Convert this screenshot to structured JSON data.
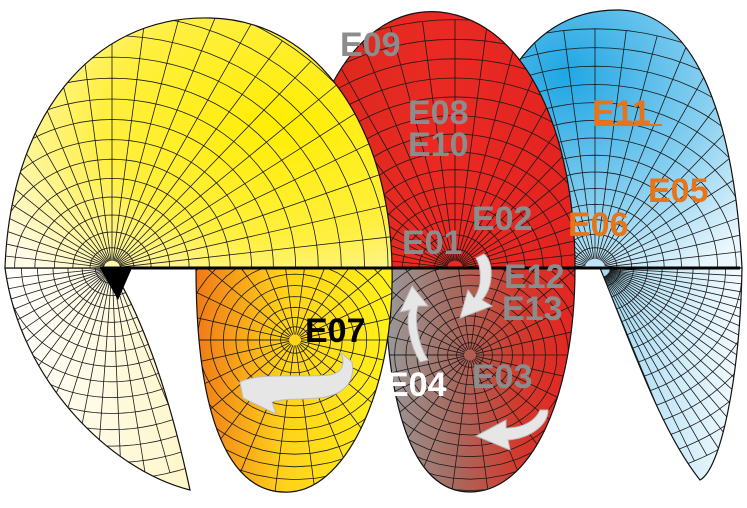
{
  "diagram": {
    "labels": {
      "e01": "E01",
      "e02": "E02",
      "e03": "E03",
      "e04": "E04",
      "e05": "E05",
      "e06": "E06",
      "e07": "E07",
      "e08": "E08",
      "e09": "E09",
      "e10": "E10",
      "e11": "E11",
      "e12": "E12",
      "e13": "E13"
    },
    "colors": {
      "yellow_turn": "#ffef1a",
      "red_turn": "#e8231f",
      "blue_turn": "#33aee6",
      "orange_turn": "#f08a1c",
      "grid_line": "#1a1a1a",
      "label_grey": "#8c8c8c",
      "label_orange": "#e8741a",
      "label_black": "#000000",
      "label_white": "#ffffff",
      "arrow_fill": "#e6e6e6"
    },
    "icons": [
      "curved-arrow-icon"
    ]
  }
}
